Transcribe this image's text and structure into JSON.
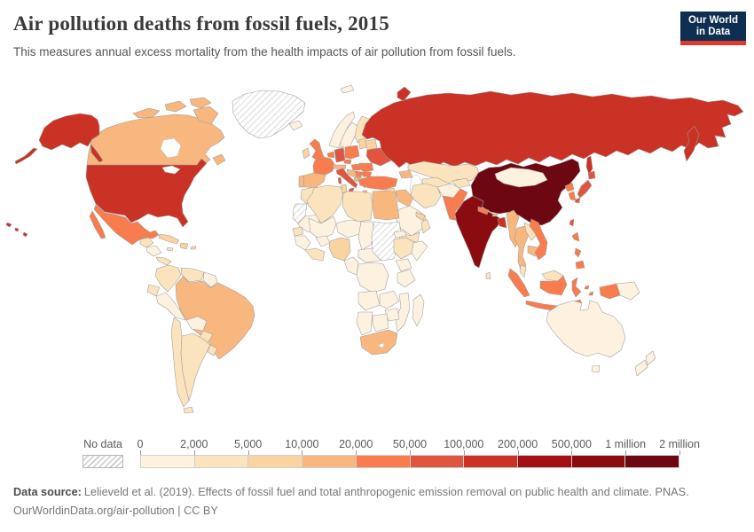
{
  "header": {
    "title": "Air pollution deaths from fossil fuels, 2015",
    "subtitle": "This measures annual excess mortality from the health impacts of air pollution from fossil fuels.",
    "logo": {
      "line1": "Our World",
      "line2": "in Data",
      "bg_color": "#0E2F52",
      "accent_color": "#E0392B"
    }
  },
  "legend": {
    "no_data_label": "No data",
    "ticks": [
      "0",
      "2,000",
      "5,000",
      "10,000",
      "20,000",
      "50,000",
      "100,000",
      "200,000",
      "500,000",
      "1 million",
      "2 million"
    ],
    "bin_colors": [
      "#FDF1E0",
      "#FAE3BD",
      "#F9D3A0",
      "#F8B77E",
      "#F87C4E",
      "#E0553F",
      "#C93225",
      "#A40F13",
      "#8A0C10",
      "#6D0812"
    ]
  },
  "footer": {
    "source_label": "Data source:",
    "source_text": "Lelieveld et al. (2019). Effects of fossil fuel and total anthropogenic emission removal on public health and climate. PNAS.",
    "link_text": "OurWorldinData.org/air-pollution",
    "separator": "|",
    "license": "CC BY"
  },
  "map": {
    "border_color": "#9d9d9d",
    "fills": {
      "greenland": "no-data",
      "canada": "#F8B77E",
      "united-states": "#C93225",
      "mexico": "#F87C4E",
      "guatemala": "#FAE3BD",
      "nicaragua": "#FDF1E0",
      "panama": "#FAE3BD",
      "cuba": "#F9D3A0",
      "dominican-republic": "#F9D3A0",
      "jamaica": "#FAE3BD",
      "puerto-rico": "#F9D3A0",
      "colombia": "#FAE3BD",
      "venezuela": "#FAE3BD",
      "guyana": "#FDF1E0",
      "ecuador": "#FAE3BD",
      "peru": "#FDF1E0",
      "brazil": "#F8B77E",
      "bolivia": "#FDF1E0",
      "paraguay": "#FAE3BD",
      "chile": "#FAE3BD",
      "argentina": "#FAE3BD",
      "uruguay": "#FAE3BD",
      "iceland": "#FDF1E0",
      "norway": "#FDF1E0",
      "sweden": "#FDF1E0",
      "finland": "#FAE3BD",
      "denmark": "#F9D3A0",
      "united-kingdom": "#F87C4E",
      "ireland": "#F9D3A0",
      "portugal": "#F8B77E",
      "spain": "#F8B77E",
      "france": "#F87C4E",
      "benelux": "#F87C4E",
      "germany": "#E0553F",
      "poland": "#F87C4E",
      "czechia": "#F87C4E",
      "austria-switzerland": "#F8B77E",
      "italy": "#E0553F",
      "croatia-bosnia": "#F8B77E",
      "hungary": "#F87C4E",
      "serbia": "#F87C4E",
      "romania": "#F87C4E",
      "bulgaria": "#F87C4E",
      "greece": "#F8B77E",
      "albania-macedonia": "#F8B77E",
      "baltic-states": "#F9D3A0",
      "belarus": "#F9D3A0",
      "ukraine": "#E0553F",
      "svalbard": "#FDF1E0",
      "russia": "#C93225",
      "kazakhstan": "#FAE3BD",
      "uzbekistan-turkmenistan": "#FAE3BD",
      "kyrgyzstan-tajikistan": "#FAE3BD",
      "caucasus": "#F8B77E",
      "turkey": "#F87C4E",
      "cyprus": "#F9D3A0",
      "syria": "#F9D3A0",
      "levant": "#FAE3BD",
      "iraq": "#F8B77E",
      "iran": "#FAE3BD",
      "saudi-arabia": "#FDF1E0",
      "yemen": "#FAE3BD",
      "oman": "#FAE3BD",
      "gulf-states": "#F9D3A0",
      "afghanistan": "#FDF1E0",
      "pakistan": "#F87C4E",
      "india": "#8A0C10",
      "nepal": "#F87C4E",
      "bhutan": "#F8B77E",
      "bangladesh": "#C93225",
      "sri-lanka": "#FAE3BD",
      "myanmar": "#F8B77E",
      "thailand": "#F8B77E",
      "laos": "#FAE3BD",
      "cambodia": "#F8B77E",
      "vietnam": "#F87C4E",
      "malaysia": "#FAE3BD",
      "indonesia": "#F87C4E",
      "philippines": "#F87C4E",
      "taiwan": "#E0553F",
      "china": "#6D0812",
      "mongolia": "#FDF1E0",
      "north-korea": "#F87C4E",
      "south-korea": "#F87C4E",
      "japan": "#E0553F",
      "papua-new-guinea": "#FDF1E0",
      "morocco": "#FAE3BD",
      "western-sahara": "no-data",
      "mauritania": "#FDF1E0",
      "algeria": "#FAE3BD",
      "tunisia": "#F9D3A0",
      "libya": "#FAE3BD",
      "egypt": "#F8B77E",
      "mali": "#FDF1E0",
      "niger": "#FDF1E0",
      "chad": "#FDF1E0",
      "senegal": "#FAE3BD",
      "guinea": "#FDF1E0",
      "ivory-coast-ghana": "#FAE3BD",
      "burkina-faso": "#FDF1E0",
      "nigeria": "#F9D3A0",
      "cameroon": "#FDF1E0",
      "central-african-republic": "#FDF1E0",
      "sudan": "no-data",
      "eritrea": "#FDF1E0",
      "ethiopia": "#FAE3BD",
      "somalia": "#FDF1E0",
      "kenya": "#FDF1E0",
      "tanzania": "#FDF1E0",
      "dr-congo": "#FDF1E0",
      "angola": "#FDF1E0",
      "zambia": "#FDF1E0",
      "mozambique": "#FDF1E0",
      "zimbabwe": "#FDF1E0",
      "namibia": "#FDF1E0",
      "botswana": "#FDF1E0",
      "south-africa": "#F8B77E",
      "madagascar": "#FDF1E0",
      "australia": "#FDF1E0",
      "new-zealand": "#FDF1E0"
    }
  },
  "chart_data": {
    "type": "choropleth",
    "title": "Air pollution deaths from fossil fuels, 2015",
    "year": 2015,
    "unit": "annual excess deaths",
    "legend_ticks": [
      "0",
      "2,000",
      "5,000",
      "10,000",
      "20,000",
      "50,000",
      "100,000",
      "200,000",
      "500,000",
      "1 million",
      "2 million"
    ],
    "bins": [
      {
        "range": "0–2,000",
        "color": "#FDF1E0"
      },
      {
        "range": "2,000–5,000",
        "color": "#FAE3BD"
      },
      {
        "range": "5,000–10,000",
        "color": "#F9D3A0"
      },
      {
        "range": "10,000–20,000",
        "color": "#F8B77E"
      },
      {
        "range": "20,000–50,000",
        "color": "#F87C4E"
      },
      {
        "range": "50,000–100,000",
        "color": "#E0553F"
      },
      {
        "range": "100,000–200,000",
        "color": "#C93225"
      },
      {
        "range": "200,000–500,000",
        "color": "#A40F13"
      },
      {
        "range": "500,000–1 million",
        "color": "#8A0C10"
      },
      {
        "range": "1–2 million",
        "color": "#6D0812"
      }
    ],
    "no_data": [
      "Greenland",
      "Sudan",
      "Western Sahara"
    ],
    "countries": {
      "China": "1–2 million",
      "India": "500,000–1 million",
      "Russia": "100,000–200,000",
      "United States": "100,000–200,000",
      "Bangladesh": "100,000–200,000",
      "Germany": "50,000–100,000",
      "Italy": "50,000–100,000",
      "Ukraine": "50,000–100,000",
      "Japan": "50,000–100,000",
      "Taiwan": "50,000–100,000",
      "United Kingdom": "20,000–50,000",
      "France": "20,000–50,000",
      "Poland": "20,000–50,000",
      "Turkey": "20,000–50,000",
      "Mexico": "20,000–50,000",
      "Pakistan": "20,000–50,000",
      "Vietnam": "20,000–50,000",
      "Indonesia": "20,000–50,000",
      "Philippines": "20,000–50,000",
      "North Korea": "20,000–50,000",
      "South Korea": "20,000–50,000",
      "Nepal": "20,000–50,000",
      "Romania": "20,000–50,000",
      "Hungary": "20,000–50,000",
      "Canada": "10,000–20,000",
      "Brazil": "10,000–20,000",
      "Spain": "10,000–20,000",
      "Egypt": "10,000–20,000",
      "South Africa": "10,000–20,000",
      "Iraq": "10,000–20,000",
      "Myanmar": "10,000–20,000",
      "Thailand": "10,000–20,000",
      "Cambodia": "10,000–20,000",
      "Greece": "10,000–20,000",
      "Nigeria": "5,000–10,000",
      "Denmark": "5,000–10,000",
      "Cuba": "5,000–10,000",
      "Ireland": "5,000–10,000",
      "Syria": "5,000–10,000",
      "Tunisia": "5,000–10,000",
      "Colombia": "2,000–5,000",
      "Venezuela": "2,000–5,000",
      "Argentina": "2,000–5,000",
      "Chile": "2,000–5,000",
      "Kazakhstan": "2,000–5,000",
      "Iran": "2,000–5,000",
      "Algeria": "2,000–5,000",
      "Morocco": "2,000–5,000",
      "Libya": "2,000–5,000",
      "Ethiopia": "2,000–5,000",
      "Finland": "2,000–5,000",
      "Malaysia": "2,000–5,000",
      "Sri Lanka": "2,000–5,000",
      "Laos": "2,000–5,000",
      "Australia": "0–2,000",
      "New Zealand": "0–2,000",
      "Mongolia": "0–2,000",
      "Saudi Arabia": "0–2,000",
      "Afghanistan": "0–2,000",
      "Norway": "0–2,000",
      "Sweden": "0–2,000",
      "Iceland": "0–2,000",
      "Peru": "0–2,000",
      "Bolivia": "0–2,000",
      "Papua New Guinea": "0–2,000",
      "Madagascar": "0–2,000",
      "DR Congo": "0–2,000",
      "Mali": "0–2,000",
      "Niger": "0–2,000",
      "Chad": "0–2,000",
      "Somalia": "0–2,000"
    }
  }
}
